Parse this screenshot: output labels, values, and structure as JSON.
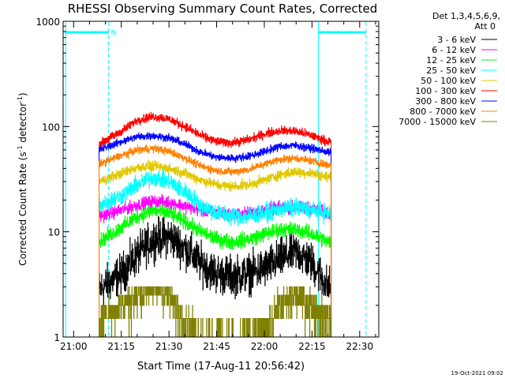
{
  "chart_data": {
    "type": "line",
    "title": "RHESSI Observing Summary Count Rates, Corrected",
    "xlabel": "Start Time (17-Aug-11 20:56:42)",
    "ylabel_main": "Corrected Count Rate (s",
    "ylabel_sup1": "-1",
    "ylabel_mid": " detector",
    "ylabel_sup2": "-1",
    "ylabel_end": ")",
    "yscale": "log",
    "ylim": [
      1,
      1000
    ],
    "xlim": [
      "20:56:42",
      "22:36:00"
    ],
    "x_start": "20:56:42",
    "xticks": [
      "21:00",
      "21:15",
      "21:30",
      "21:45",
      "22:00",
      "22:15",
      "22:30"
    ],
    "yticks": [
      "1",
      "10",
      "100",
      "1000"
    ],
    "legend_header": [
      "Det 1,3,4,5,6,9,",
      "Att 0"
    ],
    "legend_placement": "right",
    "flag_label": "N",
    "footer": "19-Oct-2021 09:02",
    "observing_window": [
      "21:08:00",
      "22:21:00"
    ],
    "night_intervals": [
      [
        "20:56:42",
        "21:11:00"
      ],
      [
        "22:17:00",
        "22:32:00"
      ]
    ],
    "night_lines": [
      "20:57:30",
      "21:11:00",
      "22:17:00",
      "22:32:00"
    ],
    "series": [
      {
        "name": "3 - 6 keV",
        "color": "#000000",
        "values_at": [
          "21:08",
          "21:15",
          "21:20",
          "21:25",
          "21:30",
          "21:35",
          "21:40",
          "21:45",
          "21:50",
          "21:55",
          "22:00",
          "22:05",
          "22:10",
          "22:15",
          "22:20"
        ],
        "values": [
          2.8,
          4,
          6,
          8.5,
          9,
          7,
          5,
          4,
          3.8,
          4,
          4.5,
          5.5,
          6.5,
          5,
          3
        ]
      },
      {
        "name": "6 - 12 keV",
        "color": "#ff00ff",
        "values_at": [
          "21:08",
          "21:15",
          "21:20",
          "21:25",
          "21:30",
          "21:35",
          "21:40",
          "21:45",
          "21:50",
          "21:55",
          "22:00",
          "22:05",
          "22:10",
          "22:15",
          "22:20"
        ],
        "values": [
          14,
          16,
          18,
          19.5,
          19,
          17.5,
          16,
          15,
          14.5,
          15,
          16,
          17,
          17,
          16.5,
          15
        ]
      },
      {
        "name": "12 - 25 keV",
        "color": "#00ff00",
        "values_at": [
          "21:08",
          "21:15",
          "21:20",
          "21:25",
          "21:30",
          "21:35",
          "21:40",
          "21:45",
          "21:50",
          "21:55",
          "22:00",
          "22:05",
          "22:10",
          "22:15",
          "22:20"
        ],
        "values": [
          8,
          11,
          14,
          16,
          15,
          12.5,
          10,
          8.5,
          8,
          8.5,
          9.5,
          10.5,
          10.5,
          9.5,
          8
        ]
      },
      {
        "name": "25 - 50 keV",
        "color": "#00ffff",
        "values_at": [
          "21:08",
          "21:15",
          "21:20",
          "21:25",
          "21:30",
          "21:35",
          "21:40",
          "21:45",
          "21:50",
          "21:55",
          "22:00",
          "22:05",
          "22:10",
          "22:15",
          "22:20"
        ],
        "values": [
          18,
          22,
          28,
          33,
          30,
          24,
          18,
          15,
          14,
          14,
          15,
          16.5,
          17,
          16,
          15
        ]
      },
      {
        "name": "50 - 100 keV",
        "color": "#e0c800",
        "values_at": [
          "21:08",
          "21:15",
          "21:20",
          "21:25",
          "21:30",
          "21:35",
          "21:40",
          "21:45",
          "21:50",
          "21:55",
          "22:00",
          "22:05",
          "22:10",
          "22:15",
          "22:20"
        ],
        "values": [
          30,
          36,
          41,
          42,
          40,
          36,
          31,
          28,
          27,
          28,
          31,
          35,
          37,
          36,
          33
        ]
      },
      {
        "name": "100 - 300 keV",
        "color": "#ff0000",
        "values_at": [
          "21:08",
          "21:15",
          "21:20",
          "21:25",
          "21:30",
          "21:35",
          "21:40",
          "21:45",
          "21:50",
          "21:55",
          "22:00",
          "22:05",
          "22:10",
          "22:15",
          "22:20"
        ],
        "values": [
          68,
          90,
          115,
          125,
          118,
          100,
          82,
          72,
          70,
          75,
          85,
          92,
          90,
          82,
          72
        ]
      },
      {
        "name": "300 - 800 keV",
        "color": "#0000ff",
        "values_at": [
          "21:08",
          "21:15",
          "21:20",
          "21:25",
          "21:30",
          "21:35",
          "21:40",
          "21:45",
          "21:50",
          "21:55",
          "22:00",
          "22:05",
          "22:10",
          "22:15",
          "22:20"
        ],
        "values": [
          60,
          72,
          80,
          82,
          78,
          68,
          57,
          51,
          50,
          52,
          58,
          65,
          66,
          62,
          57
        ]
      },
      {
        "name": "800 - 7000 keV",
        "color": "#ff8000",
        "values_at": [
          "21:08",
          "21:15",
          "21:20",
          "21:25",
          "21:30",
          "21:35",
          "21:40",
          "21:45",
          "21:50",
          "21:55",
          "22:00",
          "22:05",
          "22:10",
          "22:15",
          "22:20"
        ],
        "values": [
          44,
          53,
          60,
          62,
          58,
          50,
          42,
          38,
          37,
          39,
          44,
          49,
          50,
          47,
          43
        ]
      },
      {
        "name": "7000 - 15000 keV",
        "color": "#808000",
        "values_at": [
          "21:08",
          "21:15",
          "21:20",
          "21:25",
          "21:30",
          "21:35",
          "21:40",
          "21:45",
          "21:50",
          "21:55",
          "22:00",
          "22:05",
          "22:10",
          "22:15",
          "22:20"
        ],
        "values": [
          1.5,
          2,
          2.5,
          3,
          2.5,
          1.5,
          1,
          1,
          1,
          1,
          1.2,
          2,
          2.5,
          2,
          1.5
        ]
      }
    ]
  }
}
